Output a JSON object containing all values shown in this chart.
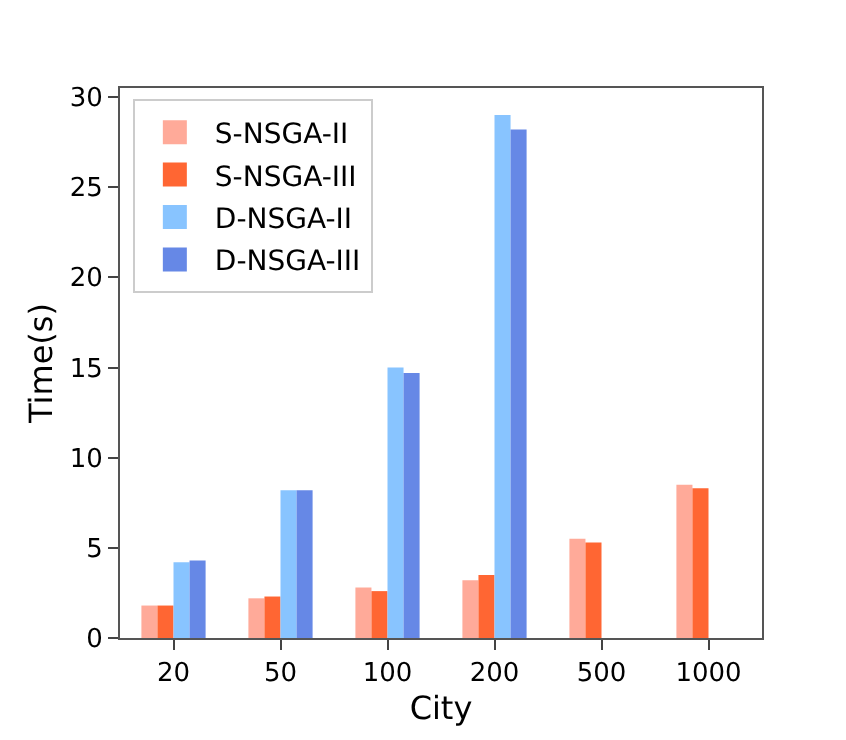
{
  "chart_data": {
    "type": "bar",
    "xlabel": "City",
    "ylabel": "Time(s)",
    "categories": [
      "20",
      "50",
      "100",
      "200",
      "500",
      "1000"
    ],
    "series": [
      {
        "name": "S-NSGA-II",
        "color": "#ffaa99",
        "values": [
          1.8,
          2.2,
          2.8,
          3.2,
          5.5,
          8.5
        ]
      },
      {
        "name": "S-NSGA-III",
        "color": "#ff6633",
        "values": [
          1.8,
          2.3,
          2.6,
          3.5,
          5.3,
          8.3
        ]
      },
      {
        "name": "D-NSGA-II",
        "color": "#88c4ff",
        "values": [
          4.2,
          8.2,
          15.0,
          29.0,
          null,
          null
        ]
      },
      {
        "name": "D-NSGA-III",
        "color": "#6688e6",
        "values": [
          4.3,
          8.2,
          14.7,
          28.2,
          null,
          null
        ]
      }
    ],
    "ylim": [
      0,
      30.5
    ],
    "yticks": [
      0,
      5,
      10,
      15,
      20,
      25,
      30
    ],
    "legend": "top left"
  }
}
